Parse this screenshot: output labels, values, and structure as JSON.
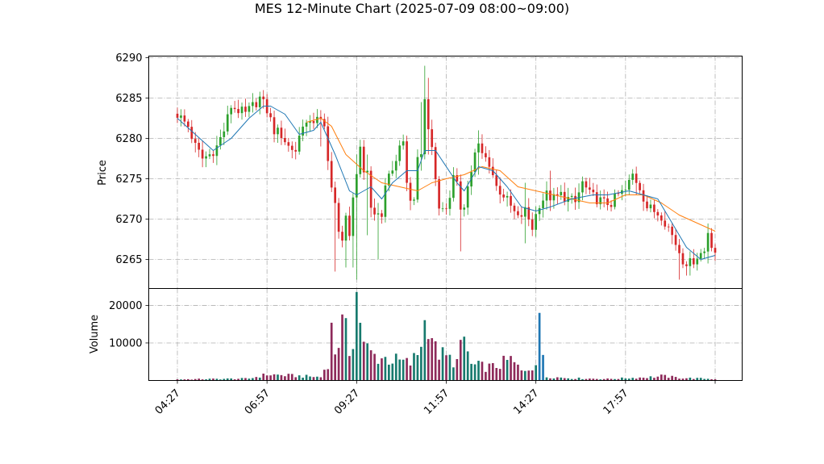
{
  "chart_data": {
    "type": "candlestick",
    "title": "MES 12-Minute Chart (2025-07-09 08:00~09:00)",
    "price_axis": {
      "label": "Price",
      "ylim": [
        6261.4,
        6290.2
      ],
      "ticks": [
        6265,
        6270,
        6275,
        6280,
        6285,
        6290
      ]
    },
    "volume_axis": {
      "label": "Volume",
      "ylim": [
        0,
        24500
      ],
      "ticks": [
        10000,
        20000
      ]
    },
    "x_axis": {
      "tick_labels": [
        "04:27",
        "06:57",
        "09:27",
        "11:57",
        "14:27",
        "17:57"
      ],
      "tick_bar_index": [
        0,
        25,
        50,
        75,
        100,
        125
      ],
      "end_tick_bar_index": 150,
      "bar_count": 151
    },
    "grid": true,
    "colors": {
      "up": "#2ca02c",
      "down": "#d62728",
      "ma_fast": "#1f77b4",
      "ma_slow": "#ff7f0e",
      "volume_up": "#177a6e",
      "volume_down": "#8e2a5a",
      "volume_spike": "#1f77b4"
    },
    "close_path": [
      [
        0,
        6283.0
      ],
      [
        3,
        6281.5
      ],
      [
        5,
        6279.0
      ],
      [
        7,
        6277.5
      ],
      [
        9,
        6278.0
      ],
      [
        11,
        6279.0
      ],
      [
        13,
        6281.0
      ],
      [
        15,
        6284.0
      ],
      [
        17,
        6283.5
      ],
      [
        19,
        6283.0
      ],
      [
        21,
        6284.0
      ],
      [
        23,
        6285.0
      ],
      [
        25,
        6283.5
      ],
      [
        27,
        6281.0
      ],
      [
        29,
        6280.5
      ],
      [
        31,
        6279.0
      ],
      [
        33,
        6278.5
      ],
      [
        35,
        6282.0
      ],
      [
        37,
        6281.5
      ],
      [
        39,
        6283.0
      ],
      [
        41,
        6281.0
      ],
      [
        42,
        6277.0
      ],
      [
        43,
        6274.5
      ],
      [
        44,
        6272.0
      ],
      [
        45,
        6268.0
      ],
      [
        46,
        6267.0
      ],
      [
        47,
        6271.0
      ],
      [
        48,
        6268.0
      ],
      [
        49,
        6272.0
      ],
      [
        50,
        6275.0
      ],
      [
        51,
        6279.0
      ],
      [
        52,
        6276.0
      ],
      [
        53,
        6276.0
      ],
      [
        54,
        6272.0
      ],
      [
        55,
        6270.0
      ],
      [
        56,
        6271.0
      ],
      [
        57,
        6270.5
      ],
      [
        58,
        6274.0
      ],
      [
        59,
        6275.5
      ],
      [
        60,
        6276.0
      ],
      [
        61,
        6277.5
      ],
      [
        62,
        6278.5
      ],
      [
        63,
        6279.0
      ],
      [
        64,
        6275.0
      ],
      [
        65,
        6272.0
      ],
      [
        66,
        6273.0
      ],
      [
        67,
        6277.0
      ],
      [
        68,
        6278.0
      ],
      [
        69,
        6285.0
      ],
      [
        70,
        6281.0
      ],
      [
        71,
        6279.0
      ],
      [
        72,
        6275.0
      ],
      [
        73,
        6272.0
      ],
      [
        74,
        6271.0
      ],
      [
        75,
        6271.5
      ],
      [
        76,
        6273.0
      ],
      [
        77,
        6275.0
      ],
      [
        78,
        6274.0
      ],
      [
        79,
        6271.5
      ],
      [
        80,
        6272.0
      ],
      [
        81,
        6274.0
      ],
      [
        82,
        6276.0
      ],
      [
        83,
        6278.0
      ],
      [
        84,
        6279.0
      ],
      [
        85,
        6278.0
      ],
      [
        87,
        6277.0
      ],
      [
        89,
        6274.0
      ],
      [
        91,
        6273.0
      ],
      [
        93,
        6271.5
      ],
      [
        95,
        6270.0
      ],
      [
        97,
        6271.0
      ],
      [
        99,
        6269.0
      ],
      [
        101,
        6272.0
      ],
      [
        103,
        6273.0
      ],
      [
        105,
        6272.5
      ],
      [
        107,
        6273.0
      ],
      [
        109,
        6272.5
      ],
      [
        111,
        6272.0
      ],
      [
        113,
        6274.5
      ],
      [
        115,
        6273.0
      ],
      [
        117,
        6272.5
      ],
      [
        119,
        6272.0
      ],
      [
        121,
        6272.0
      ],
      [
        123,
        6273.0
      ],
      [
        125,
        6273.5
      ],
      [
        127,
        6275.5
      ],
      [
        129,
        6274.0
      ],
      [
        131,
        6271.5
      ],
      [
        133,
        6271.0
      ],
      [
        135,
        6270.5
      ],
      [
        137,
        6269.0
      ],
      [
        139,
        6267.0
      ],
      [
        141,
        6265.0
      ],
      [
        143,
        6264.5
      ],
      [
        145,
        6265.5
      ],
      [
        147,
        6266.0
      ],
      [
        148,
        6268.5
      ],
      [
        149,
        6267.0
      ],
      [
        150,
        6266.0
      ]
    ],
    "ma_fast": [
      [
        0,
        6282.5
      ],
      [
        10,
        6278.5
      ],
      [
        15,
        6280.0
      ],
      [
        20,
        6282.5
      ],
      [
        24,
        6284.0
      ],
      [
        26,
        6284.0
      ],
      [
        30,
        6283.0
      ],
      [
        34,
        6280.5
      ],
      [
        38,
        6281.0
      ],
      [
        40,
        6282.0
      ],
      [
        44,
        6278.0
      ],
      [
        48,
        6273.5
      ],
      [
        50,
        6273.0
      ],
      [
        54,
        6274.0
      ],
      [
        57,
        6272.5
      ],
      [
        60,
        6274.5
      ],
      [
        64,
        6276.0
      ],
      [
        67,
        6276.0
      ],
      [
        69,
        6278.5
      ],
      [
        72,
        6278.5
      ],
      [
        75,
        6276.5
      ],
      [
        78,
        6274.5
      ],
      [
        80,
        6273.5
      ],
      [
        84,
        6276.5
      ],
      [
        88,
        6276.0
      ],
      [
        92,
        6274.0
      ],
      [
        96,
        6271.5
      ],
      [
        100,
        6271.0
      ],
      [
        104,
        6271.5
      ],
      [
        110,
        6272.5
      ],
      [
        116,
        6273.0
      ],
      [
        120,
        6273.0
      ],
      [
        126,
        6273.5
      ],
      [
        130,
        6273.0
      ],
      [
        134,
        6272.5
      ],
      [
        138,
        6269.5
      ],
      [
        142,
        6266.5
      ],
      [
        146,
        6265.0
      ],
      [
        150,
        6265.5
      ]
    ],
    "ma_slow": [
      [
        36,
        6282.0
      ],
      [
        40,
        6282.5
      ],
      [
        43,
        6281.5
      ],
      [
        47,
        6278.0
      ],
      [
        52,
        6276.0
      ],
      [
        57,
        6274.5
      ],
      [
        62,
        6274.0
      ],
      [
        67,
        6273.5
      ],
      [
        71,
        6274.5
      ],
      [
        75,
        6275.0
      ],
      [
        80,
        6275.5
      ],
      [
        85,
        6276.5
      ],
      [
        90,
        6276.0
      ],
      [
        95,
        6274.0
      ],
      [
        100,
        6273.5
      ],
      [
        105,
        6273.0
      ],
      [
        110,
        6272.5
      ],
      [
        115,
        6272.0
      ],
      [
        120,
        6272.0
      ],
      [
        125,
        6273.0
      ],
      [
        130,
        6273.0
      ],
      [
        135,
        6272.0
      ],
      [
        140,
        6270.5
      ],
      [
        145,
        6269.5
      ],
      [
        150,
        6268.5
      ]
    ],
    "spikes": [
      [
        40,
        6283.5,
        6279.0
      ],
      [
        44,
        6268.0,
        6263.5
      ],
      [
        47,
        6270.0,
        6264.0
      ],
      [
        49,
        6271.0,
        6264.0
      ],
      [
        50,
        6278.0,
        6262.5
      ],
      [
        53,
        6278.0,
        6268.0
      ],
      [
        56,
        6272.0,
        6265.0
      ],
      [
        68,
        6284.5,
        6276.0
      ],
      [
        69,
        6289.0,
        6280.0
      ],
      [
        70,
        6287.5,
        6278.0
      ],
      [
        79,
        6274.0,
        6266.0
      ],
      [
        84,
        6281.0,
        6275.5
      ],
      [
        97,
        6274.5,
        6267.0
      ],
      [
        104,
        6276.0,
        6271.0
      ],
      [
        128,
        6276.5,
        6273.0
      ],
      [
        140,
        6266.0,
        6262.5
      ],
      [
        143,
        6266.0,
        6263.0
      ],
      [
        148,
        6269.0,
        6264.5
      ]
    ],
    "volume_profile": [
      [
        0,
        300
      ],
      [
        20,
        500
      ],
      [
        25,
        1600
      ],
      [
        40,
        900
      ],
      [
        42,
        5000
      ],
      [
        43,
        13000
      ],
      [
        44,
        8000
      ],
      [
        46,
        14000
      ],
      [
        47,
        12000
      ],
      [
        48,
        8000
      ],
      [
        49,
        12500
      ],
      [
        50,
        23000
      ],
      [
        51,
        17000
      ],
      [
        52,
        9000
      ],
      [
        55,
        6500
      ],
      [
        60,
        5500
      ],
      [
        65,
        4500
      ],
      [
        67,
        7000
      ],
      [
        69,
        15000
      ],
      [
        70,
        17500
      ],
      [
        72,
        8000
      ],
      [
        75,
        6000
      ],
      [
        78,
        5000
      ],
      [
        80,
        11000
      ],
      [
        82,
        4000
      ],
      [
        88,
        3500
      ],
      [
        93,
        5500
      ],
      [
        96,
        2500
      ],
      [
        100,
        4500
      ],
      [
        102,
        6800
      ],
      [
        103,
        1000
      ],
      [
        110,
        600
      ],
      [
        120,
        400
      ],
      [
        127,
        700
      ],
      [
        134,
        1000
      ],
      [
        135,
        1200
      ],
      [
        140,
        700
      ],
      [
        150,
        400
      ]
    ],
    "volume_spike": [
      [
        101,
        18000
      ],
      [
        102,
        6800
      ]
    ]
  }
}
